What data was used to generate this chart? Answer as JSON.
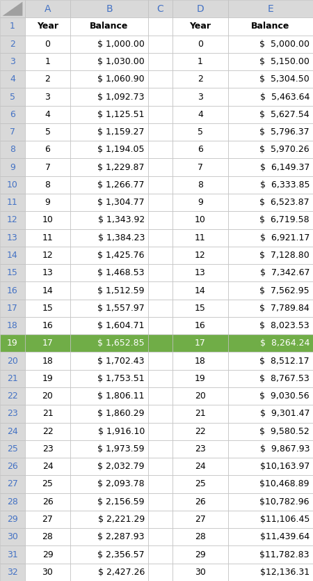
{
  "years": [
    0,
    1,
    2,
    3,
    4,
    5,
    6,
    7,
    8,
    9,
    10,
    11,
    12,
    13,
    14,
    15,
    16,
    17,
    18,
    19,
    20,
    21,
    22,
    23,
    24,
    25,
    26,
    27,
    28,
    29,
    30
  ],
  "balance_b": [
    1000.0,
    1030.0,
    1060.9,
    1092.73,
    1125.51,
    1159.27,
    1194.05,
    1229.87,
    1266.77,
    1304.77,
    1343.92,
    1384.23,
    1425.76,
    1468.53,
    1512.59,
    1557.97,
    1604.71,
    1652.85,
    1702.43,
    1753.51,
    1806.11,
    1860.29,
    1916.1,
    1973.59,
    2032.79,
    2093.78,
    2156.59,
    2221.29,
    2287.93,
    2356.57,
    2427.26
  ],
  "balance_e": [
    5000.0,
    5150.0,
    5304.5,
    5463.64,
    5627.54,
    5796.37,
    5970.26,
    6149.37,
    6333.85,
    6523.87,
    6719.58,
    6921.17,
    7128.8,
    7342.67,
    7562.95,
    7789.84,
    8023.53,
    8264.24,
    8512.17,
    8767.53,
    9030.56,
    9301.47,
    9580.52,
    9867.93,
    10163.97,
    10468.89,
    10782.96,
    11106.45,
    11439.64,
    11782.83,
    12136.31
  ],
  "header_bg": "#d9d9d9",
  "row_bg_normal": "#ffffff",
  "row_bg_selected": "#70ad47",
  "selected_row": 19,
  "grid_color": "#bfbfbf",
  "header_text_color": "#4472c4",
  "row_num_color": "#4472c4",
  "data_text_color": "#000000",
  "col_header_fontsize": 10,
  "data_fontsize": 9
}
